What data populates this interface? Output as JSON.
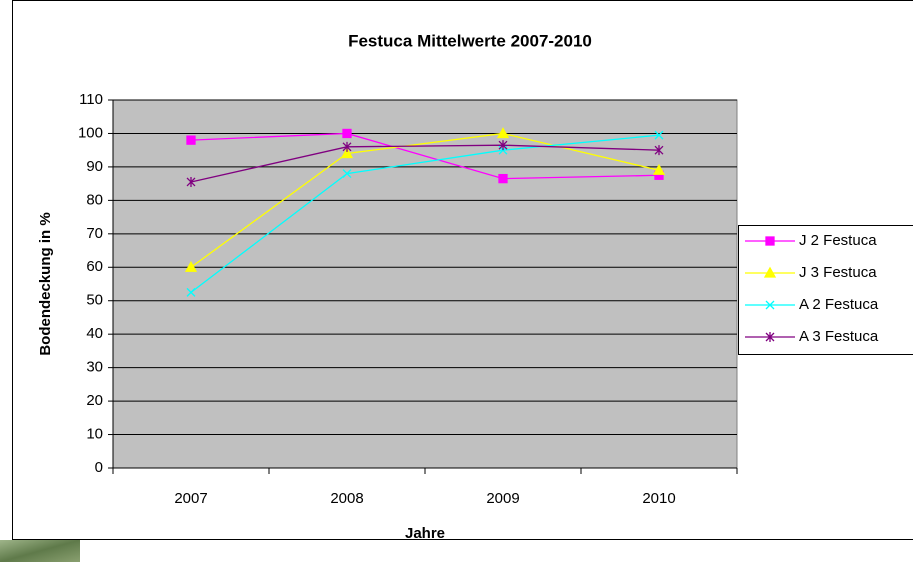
{
  "chart_data": {
    "type": "line",
    "title": "Festuca Mittelwerte 2007-2010",
    "x_label": "Jahre",
    "y_label": "Bodendeckung in %",
    "categories": [
      "2007",
      "2008",
      "2009",
      "2010"
    ],
    "series": [
      {
        "name": "J 2 Festuca",
        "color": "#ff00ff",
        "marker": "square",
        "values": [
          98,
          100,
          86.5,
          87.5
        ]
      },
      {
        "name": "J 3 Festuca",
        "color": "#ffff00",
        "marker": "triangle",
        "values": [
          60,
          94,
          100,
          89
        ]
      },
      {
        "name": "A 2 Festuca",
        "color": "#00ffff",
        "marker": "x",
        "values": [
          52.5,
          88,
          95,
          99.5
        ]
      },
      {
        "name": "A 3 Festuca",
        "color": "#800080",
        "marker": "asterisk",
        "values": [
          85.5,
          96,
          96.5,
          95
        ]
      }
    ],
    "ylim": [
      0,
      110
    ],
    "yticks": [
      0,
      10,
      20,
      30,
      40,
      50,
      60,
      70,
      80,
      90,
      100,
      110
    ],
    "grid": true,
    "plot_background": "#c0c0c0",
    "legend": "right"
  }
}
